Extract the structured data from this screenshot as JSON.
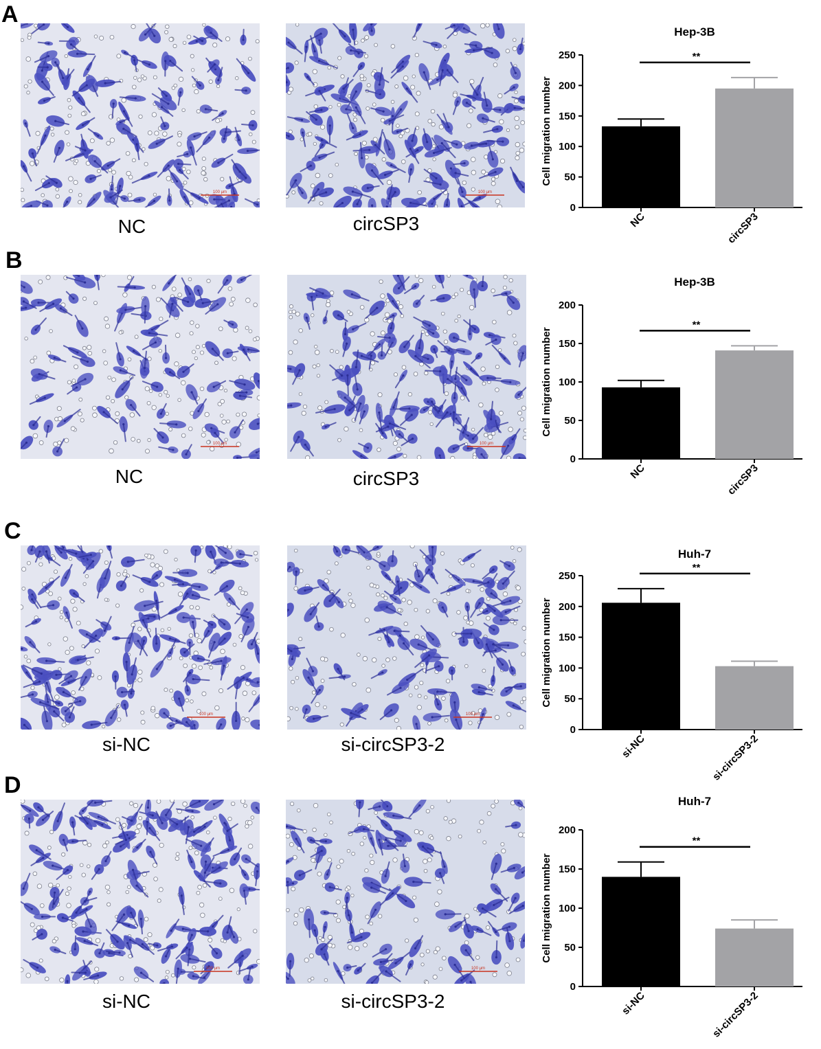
{
  "colors": {
    "background": "#e4e6f0",
    "background_alt": "#d7dcea",
    "cell_stain": "#4a4fc0",
    "cell_stain_dark": "#2c2f96",
    "scale_bar": "#c8321e",
    "bar_nc": "#000000",
    "bar_treat": "#a3a3a6"
  },
  "panels": [
    {
      "letter": "A",
      "images": [
        {
          "caption": "NC",
          "scale_label": "100 μm",
          "density": 0.62,
          "seed": 11
        },
        {
          "caption": "circSP3",
          "scale_label": "100 μm",
          "density": 0.82,
          "seed": 27
        }
      ],
      "chart_data": {
        "type": "bar",
        "title": "Hep-3B",
        "ylabel": "Cell migration number",
        "xlabel": "",
        "categories": [
          "NC",
          "circSP3"
        ],
        "values": [
          133,
          195
        ],
        "errors": [
          12,
          18
        ],
        "ylim": [
          0,
          250
        ],
        "yticks": [
          0,
          50,
          100,
          150,
          200,
          250
        ],
        "significance": "**",
        "grid": false
      }
    },
    {
      "letter": "B",
      "images": [
        {
          "caption": "NC",
          "scale_label": "100 μm",
          "density": 0.38,
          "seed": 41
        },
        {
          "caption": "circSP3",
          "scale_label": "100 μm",
          "density": 0.7,
          "seed": 53
        }
      ],
      "chart_data": {
        "type": "bar",
        "title": "Hep-3B",
        "ylabel": "Cell migration number",
        "xlabel": "",
        "categories": [
          "NC",
          "circSP3"
        ],
        "values": [
          93,
          141
        ],
        "errors": [
          9,
          6
        ],
        "ylim": [
          0,
          200
        ],
        "yticks": [
          0,
          50,
          100,
          150,
          200
        ],
        "significance": "**",
        "grid": false
      }
    },
    {
      "letter": "C",
      "images": [
        {
          "caption": "si-NC",
          "scale_label": "100 μm",
          "density": 0.8,
          "seed": 67
        },
        {
          "caption": "si-circSP3-2",
          "scale_label": "100 μm",
          "density": 0.55,
          "seed": 79
        }
      ],
      "chart_data": {
        "type": "bar",
        "title": "Huh-7",
        "ylabel": "Cell migration number",
        "xlabel": "",
        "categories": [
          "si-NC",
          "si-circSP3-2"
        ],
        "values": [
          206,
          103
        ],
        "errors": [
          23,
          8
        ],
        "ylim": [
          0,
          250
        ],
        "yticks": [
          0,
          50,
          100,
          150,
          200,
          250
        ],
        "significance": "**",
        "grid": false
      }
    },
    {
      "letter": "D",
      "images": [
        {
          "caption": "si-NC",
          "scale_label": "100 μm",
          "density": 0.78,
          "seed": 83
        },
        {
          "caption": "si-circSP3-2",
          "scale_label": "100 μm",
          "density": 0.42,
          "seed": 97
        }
      ],
      "chart_data": {
        "type": "bar",
        "title": "Huh-7",
        "ylabel": "Cell migration number",
        "xlabel": "",
        "categories": [
          "si-NC",
          "si-circSP3-2"
        ],
        "values": [
          140,
          74
        ],
        "errors": [
          19,
          11
        ],
        "ylim": [
          0,
          200
        ],
        "yticks": [
          0,
          50,
          100,
          150,
          200
        ],
        "significance": "**",
        "grid": false
      }
    }
  ]
}
